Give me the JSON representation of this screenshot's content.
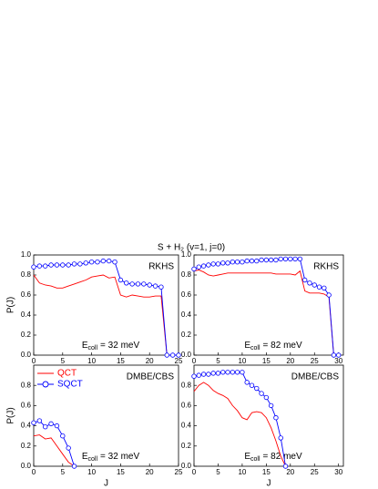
{
  "title": "S + H₂ (v=1, j=0)",
  "chart_data": [
    {
      "type": "line",
      "title": "RKHS",
      "ylabel": "P(J)",
      "energy": {
        "symbol": "E",
        "subscript": "coll",
        "text": "= 32 meV"
      },
      "x": [
        0,
        1,
        2,
        3,
        4,
        5,
        6,
        7,
        8,
        9,
        10,
        11,
        12,
        13,
        14,
        15,
        16,
        17,
        18,
        19,
        20,
        21,
        22,
        23,
        24,
        25
      ],
      "series": [
        {
          "color": "#ff0000",
          "marker": "none",
          "values": [
            0.8,
            0.72,
            0.7,
            0.69,
            0.67,
            0.67,
            0.69,
            0.71,
            0.73,
            0.75,
            0.78,
            0.79,
            0.8,
            0.77,
            0.78,
            0.6,
            0.58,
            0.6,
            0.59,
            0.58,
            0.58,
            0.59,
            0.59,
            0,
            0,
            0
          ]
        },
        {
          "color": "#0000ff",
          "marker": "circle",
          "values": [
            0.88,
            0.89,
            0.89,
            0.9,
            0.9,
            0.9,
            0.9,
            0.91,
            0.91,
            0.92,
            0.93,
            0.93,
            0.94,
            0.94,
            0.93,
            0.75,
            0.72,
            0.71,
            0.71,
            0.71,
            0.7,
            0.69,
            0.68,
            0,
            0,
            0
          ]
        }
      ],
      "xlim": [
        0,
        25
      ],
      "xticks": [
        0,
        5,
        10,
        15,
        20,
        25
      ],
      "ylim": [
        0,
        1
      ],
      "yticks": [
        {
          "value": 0,
          "label": "0.0"
        },
        0.2,
        0.4,
        0.6,
        0.8,
        {
          "value": 1,
          "label": "1.0"
        }
      ]
    },
    {
      "type": "line",
      "title": "RKHS",
      "energy": {
        "symbol": "E",
        "subscript": "coll",
        "text": "= 82 meV"
      },
      "x": [
        0,
        1,
        2,
        3,
        4,
        5,
        6,
        7,
        8,
        9,
        10,
        11,
        12,
        13,
        14,
        15,
        16,
        17,
        18,
        19,
        20,
        21,
        22,
        23,
        24,
        25,
        26,
        27,
        28,
        29,
        30
      ],
      "series": [
        {
          "color": "#ff0000",
          "marker": "none",
          "values": [
            0.84,
            0.85,
            0.83,
            0.8,
            0.79,
            0.8,
            0.81,
            0.82,
            0.82,
            0.82,
            0.82,
            0.82,
            0.82,
            0.82,
            0.82,
            0.82,
            0.82,
            0.81,
            0.81,
            0.81,
            0.81,
            0.8,
            0.84,
            0.64,
            0.62,
            0.62,
            0.62,
            0.61,
            0.58,
            0,
            0
          ]
        },
        {
          "color": "#0000ff",
          "marker": "circle",
          "values": [
            0.86,
            0.88,
            0.89,
            0.9,
            0.91,
            0.91,
            0.92,
            0.92,
            0.93,
            0.93,
            0.93,
            0.94,
            0.94,
            0.94,
            0.95,
            0.95,
            0.95,
            0.95,
            0.96,
            0.96,
            0.96,
            0.96,
            0.96,
            0.75,
            0.72,
            0.7,
            0.68,
            0.67,
            0.6,
            0,
            0
          ]
        }
      ],
      "xlim": [
        0,
        31
      ],
      "xticks": [
        0,
        5,
        10,
        15,
        20,
        25,
        30
      ],
      "ylim": [
        0,
        1
      ],
      "yticks": [
        {
          "value": 0,
          "label": "0.0"
        },
        0.2,
        0.4,
        0.6,
        0.8,
        {
          "value": 1,
          "label": "1.0"
        }
      ]
    },
    {
      "type": "line",
      "title": "DMBE/CBS",
      "ylabel": "P(J)",
      "xlabel": "J",
      "legend": "upper left",
      "energy": {
        "symbol": "E",
        "subscript": "coll",
        "text": "= 32 meV"
      },
      "x": [
        0,
        1,
        2,
        3,
        4,
        5,
        6,
        7
      ],
      "series": [
        {
          "name": "QCT",
          "color": "#ff0000",
          "marker": "none",
          "values": [
            0.3,
            0.31,
            0.27,
            0.28,
            0.2,
            0.12,
            0.04,
            0
          ]
        },
        {
          "name": "SQCT",
          "color": "#0000ff",
          "marker": "circle",
          "values": [
            0.43,
            0.45,
            0.39,
            0.42,
            0.4,
            0.3,
            0.18,
            0
          ]
        }
      ],
      "xlim": [
        0,
        25
      ],
      "xticks": [
        0,
        5,
        10,
        15,
        20,
        25
      ],
      "ylim": [
        0,
        1
      ],
      "yticks": [
        {
          "value": 0,
          "label": "0.0"
        },
        0.2,
        0.4,
        0.6,
        0.8
      ]
    },
    {
      "type": "line",
      "title": "DMBE/CBS",
      "xlabel": "J",
      "energy": {
        "symbol": "E",
        "subscript": "coll",
        "text": "= 82 meV"
      },
      "x": [
        0,
        1,
        2,
        3,
        4,
        5,
        6,
        7,
        8,
        9,
        10,
        11,
        12,
        13,
        14,
        15,
        16,
        17,
        18,
        19
      ],
      "series": [
        {
          "color": "#ff0000",
          "marker": "none",
          "values": [
            0.74,
            0.8,
            0.83,
            0.8,
            0.75,
            0.72,
            0.7,
            0.67,
            0.6,
            0.55,
            0.48,
            0.46,
            0.53,
            0.54,
            0.53,
            0.48,
            0.38,
            0.25,
            0.1,
            0
          ]
        },
        {
          "color": "#0000ff",
          "marker": "circle",
          "values": [
            0.89,
            0.9,
            0.91,
            0.91,
            0.92,
            0.92,
            0.93,
            0.93,
            0.93,
            0.93,
            0.93,
            0.83,
            0.8,
            0.77,
            0.72,
            0.68,
            0.6,
            0.48,
            0.28,
            0
          ]
        }
      ],
      "xlim": [
        0,
        31
      ],
      "xticks": [
        0,
        5,
        10,
        15,
        20,
        25,
        30
      ],
      "ylim": [
        0,
        1
      ],
      "yticks": [
        {
          "value": 0,
          "label": "0.0"
        },
        0.2,
        0.4,
        0.6,
        0.8
      ]
    }
  ]
}
